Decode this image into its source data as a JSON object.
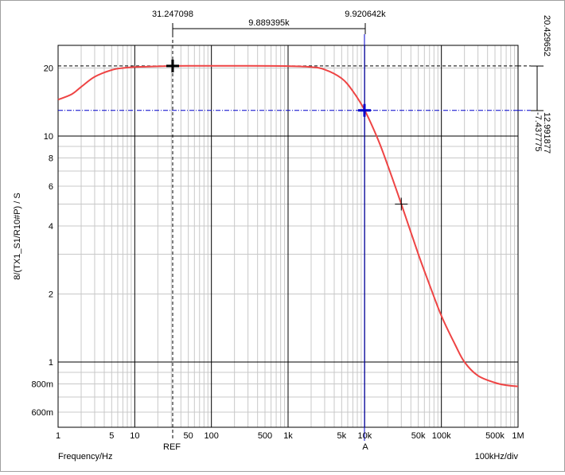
{
  "chart_data": {
    "type": "line",
    "x_scale": "log",
    "y_scale": "log",
    "xlim": [
      1,
      1000000
    ],
    "ylim": [
      0.5,
      25
    ],
    "ylabel": "8/(TX1_S1/R10#P)  / S",
    "xlabel": "Frequency/Hz",
    "x_div_label": "100kHz/div",
    "grid": true,
    "x_ticks": [
      {
        "v": 1,
        "label": "1"
      },
      {
        "v": 5,
        "label": "5"
      },
      {
        "v": 10,
        "label": "10"
      },
      {
        "v": 50,
        "label": "50"
      },
      {
        "v": 100,
        "label": "100"
      },
      {
        "v": 500,
        "label": "500"
      },
      {
        "v": 1000,
        "label": "1k"
      },
      {
        "v": 5000,
        "label": "5k"
      },
      {
        "v": 10000,
        "label": "10k"
      },
      {
        "v": 50000,
        "label": "50k"
      },
      {
        "v": 100000,
        "label": "100k"
      },
      {
        "v": 500000,
        "label": "500k"
      },
      {
        "v": 1000000,
        "label": "1M"
      }
    ],
    "y_ticks": [
      {
        "v": 0.6,
        "label": "600m"
      },
      {
        "v": 0.8,
        "label": "800m"
      },
      {
        "v": 1,
        "label": "1"
      },
      {
        "v": 2,
        "label": "2"
      },
      {
        "v": 4,
        "label": "4"
      },
      {
        "v": 6,
        "label": "6"
      },
      {
        "v": 8,
        "label": "8"
      },
      {
        "v": 10,
        "label": "10"
      },
      {
        "v": 20,
        "label": "20"
      }
    ],
    "series": [
      {
        "color": "#ee4444",
        "x": [
          1,
          1.5,
          2,
          3,
          5,
          7,
          10,
          20,
          31.25,
          50,
          100,
          300,
          1000,
          2000,
          3000,
          5000,
          7000,
          10000,
          15000,
          20000,
          30000,
          50000,
          70000,
          100000,
          150000,
          200000,
          300000,
          500000,
          700000,
          1000000
        ],
        "values": [
          14.5,
          15.3,
          16.5,
          18.3,
          19.6,
          20.0,
          20.2,
          20.35,
          20.43,
          20.45,
          20.46,
          20.45,
          20.4,
          20.2,
          19.7,
          18.0,
          15.8,
          13.0,
          9.6,
          7.4,
          5.0,
          3.0,
          2.2,
          1.6,
          1.2,
          1.0,
          0.87,
          0.81,
          0.79,
          0.78
        ]
      }
    ],
    "cursors": {
      "ref": {
        "x": 31.247098,
        "y": 20.429652,
        "label": "REF",
        "x_label": "31.247098",
        "color": "#000000"
      },
      "a": {
        "x": 9920.642,
        "y": 12.991877,
        "label": "A",
        "x_label": "9.920642k",
        "color": "#0000cc"
      },
      "delta_x_label": "9.889395k",
      "ref_value_label": "20.429652",
      "a_value_label": "12.991877",
      "delta_y_label": "-7.437775",
      "marker": {
        "x": 30000,
        "y": 5.0
      }
    }
  }
}
